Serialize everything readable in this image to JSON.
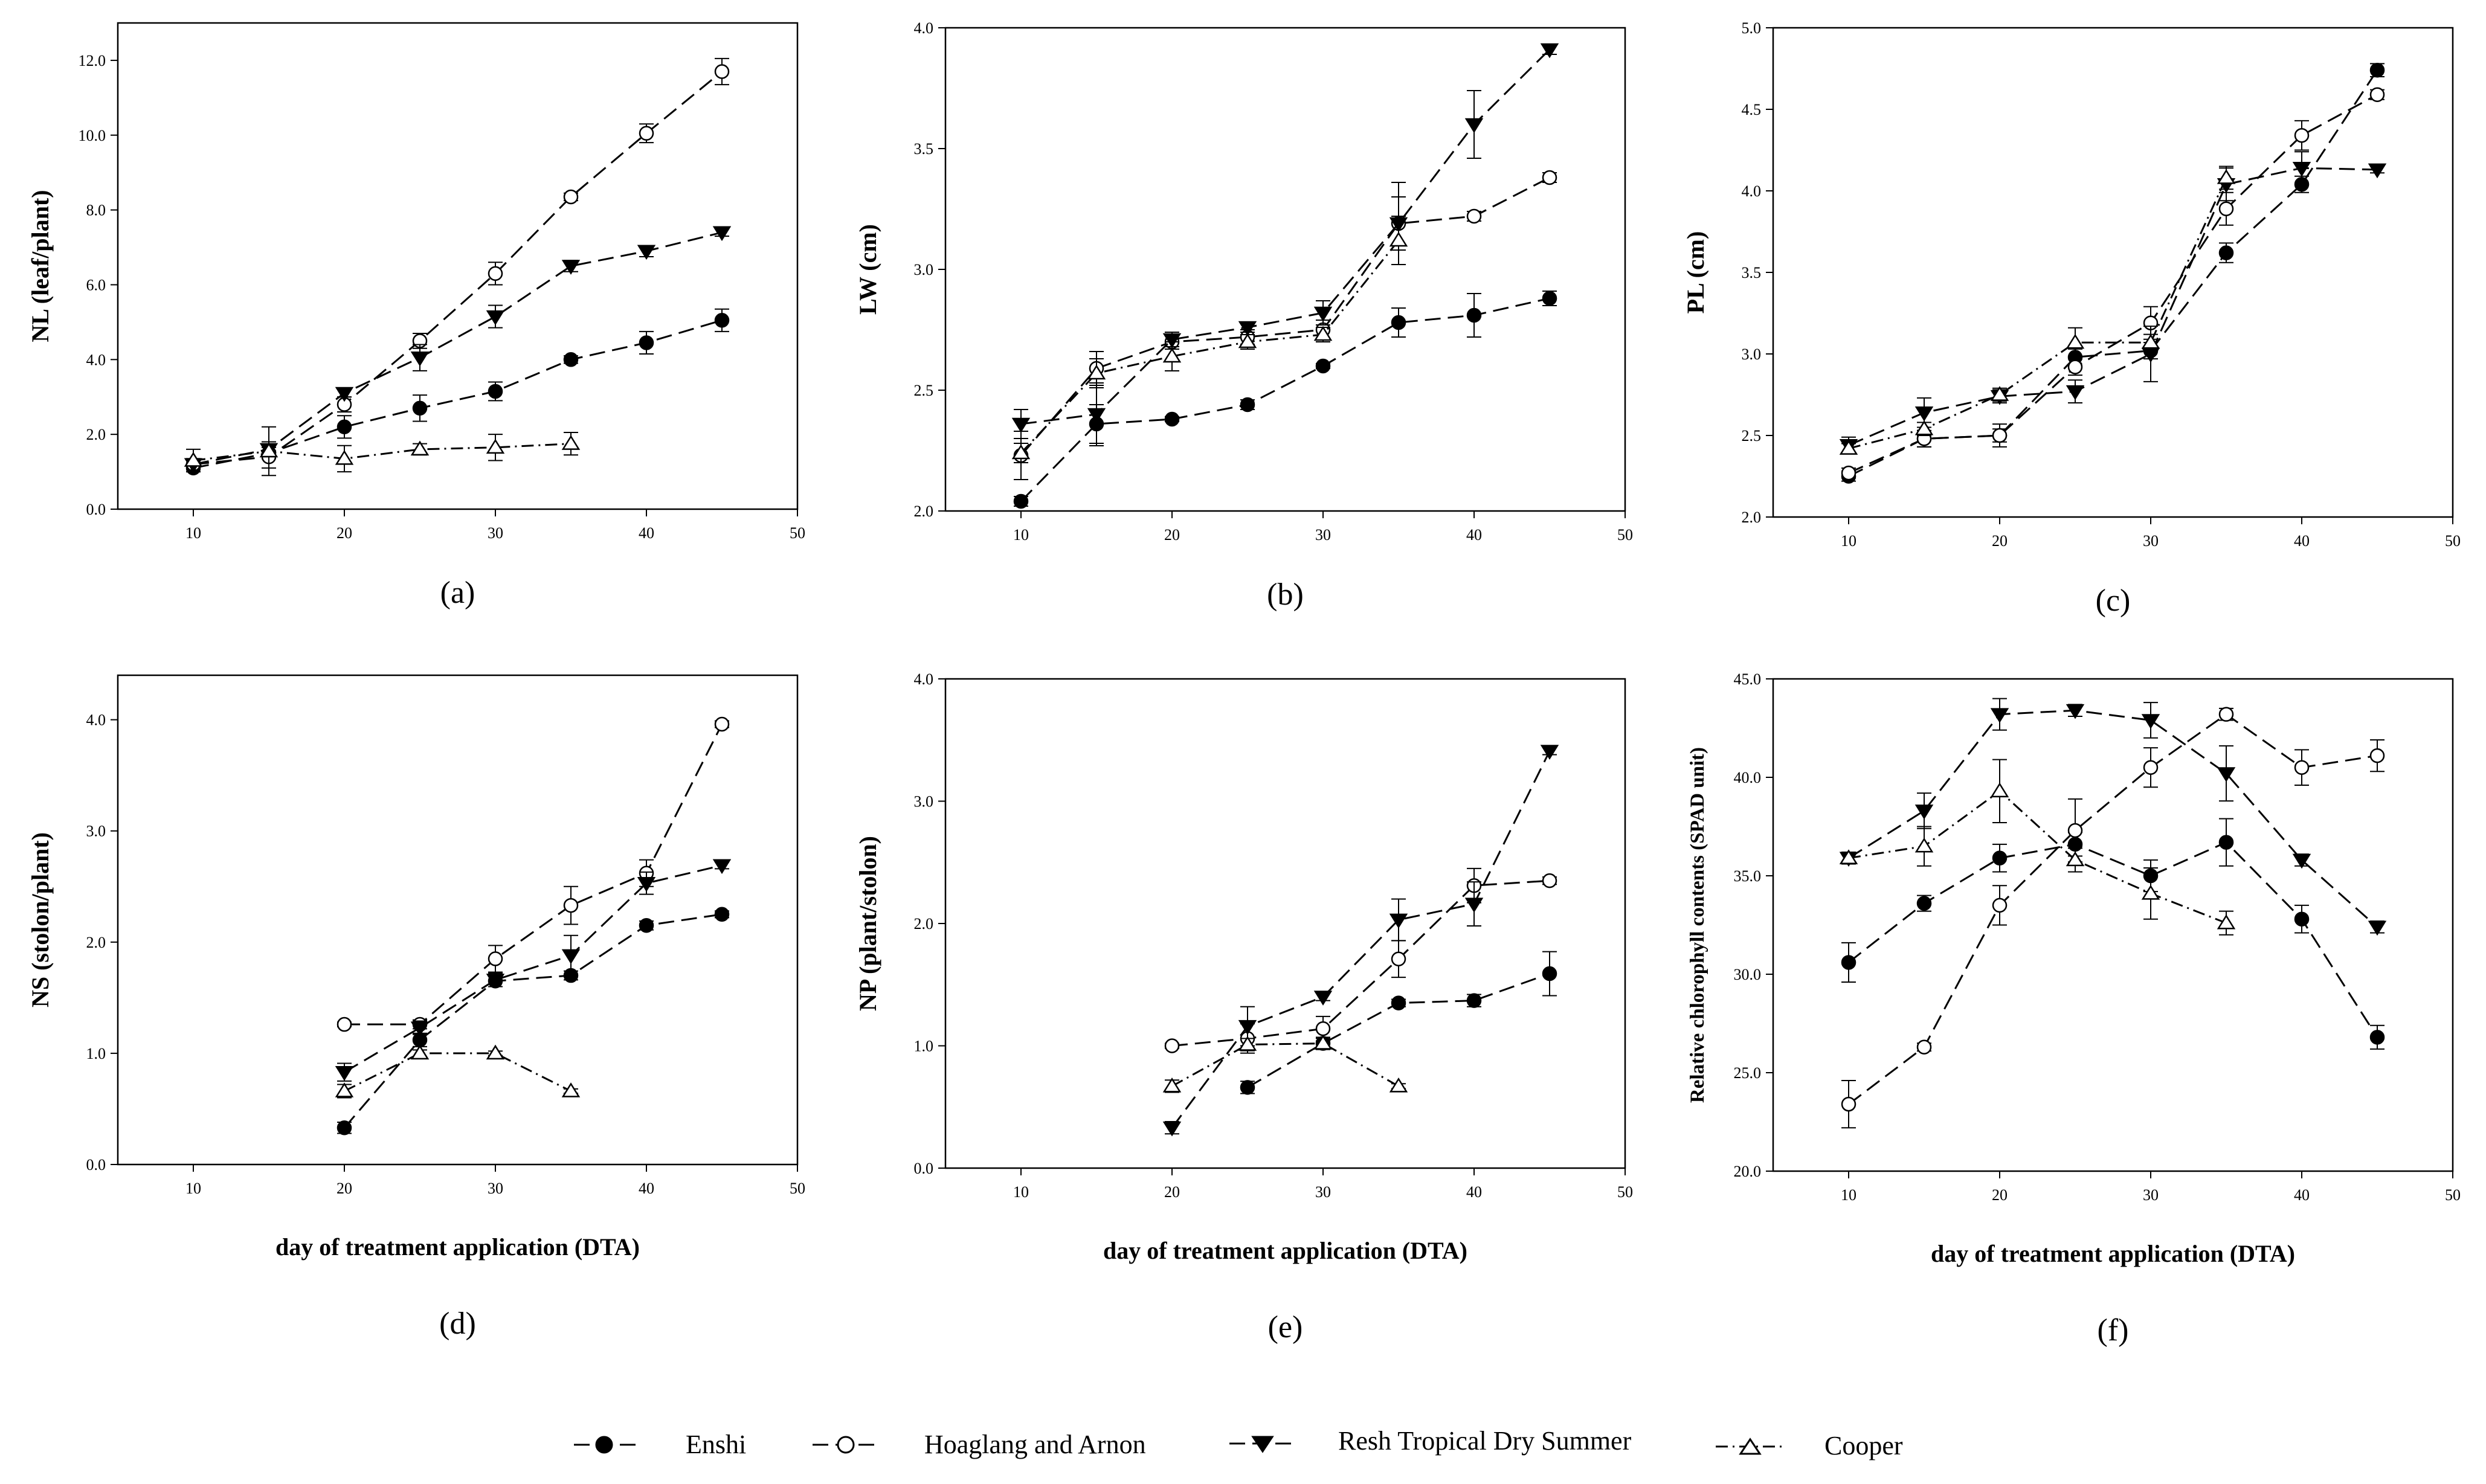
{
  "figure": {
    "xlabel": "day of treatment application (DTA)",
    "legend": [
      {
        "name": "Enshi",
        "marker": "filled-circle",
        "dash": "long-dash"
      },
      {
        "name": "Hoaglang and Arnon",
        "marker": "open-circle",
        "dash": "long-dash"
      },
      {
        "name": "Resh Tropical Dry Summer",
        "marker": "filled-triangle-down",
        "dash": "long-dash"
      },
      {
        "name": "Cooper",
        "marker": "open-triangle",
        "dash": "dash-dot"
      }
    ]
  },
  "chart_data": [
    {
      "id": "a",
      "panel_label": "(a)",
      "type": "line",
      "ylabel": "NL (leaf/plant)",
      "xlabel": "",
      "xlim": [
        5,
        50
      ],
      "ylim": [
        0,
        13
      ],
      "xticks": [
        10,
        20,
        30,
        40,
        50
      ],
      "yticks": [
        0,
        2,
        4,
        6,
        8,
        10,
        12
      ],
      "ytick_decimals": 1,
      "series": [
        {
          "name": "Enshi",
          "x": [
            10,
            15,
            20,
            25,
            30,
            35,
            40,
            45
          ],
          "y": [
            1.1,
            1.5,
            2.2,
            2.7,
            3.15,
            4.0,
            4.45,
            5.05
          ],
          "err": [
            0.1,
            0.15,
            0.3,
            0.35,
            0.25,
            0.1,
            0.3,
            0.3
          ]
        },
        {
          "name": "Hoaglang and Arnon",
          "x": [
            10,
            15,
            20,
            25,
            30,
            35,
            40,
            45
          ],
          "y": [
            1.2,
            1.4,
            2.8,
            4.5,
            6.3,
            8.35,
            10.05,
            11.7
          ],
          "err": [
            0.15,
            0.3,
            0.2,
            0.2,
            0.3,
            0.1,
            0.25,
            0.35
          ]
        },
        {
          "name": "Resh Tropical Dry Summer",
          "x": [
            10,
            15,
            20,
            25,
            30,
            35,
            40,
            45
          ],
          "y": [
            1.2,
            1.6,
            3.1,
            4.05,
            5.15,
            6.5,
            6.9,
            7.4
          ],
          "err": [
            0.15,
            0.2,
            0.1,
            0.35,
            0.3,
            0.15,
            0.15,
            0.1
          ]
        },
        {
          "name": "Cooper",
          "x": [
            10,
            15,
            20,
            25,
            30,
            35
          ],
          "y": [
            1.3,
            1.55,
            1.35,
            1.6,
            1.65,
            1.75
          ],
          "err": [
            0.3,
            0.65,
            0.35,
            0.15,
            0.35,
            0.3
          ]
        }
      ]
    },
    {
      "id": "b",
      "panel_label": "(b)",
      "type": "line",
      "ylabel": "LW (cm)",
      "xlabel": "",
      "xlim": [
        5,
        50
      ],
      "ylim": [
        2.0,
        4.0
      ],
      "xticks": [
        10,
        20,
        30,
        40,
        50
      ],
      "yticks": [
        2.0,
        2.5,
        3.0,
        3.5,
        4.0
      ],
      "ytick_decimals": 1,
      "series": [
        {
          "name": "Enshi",
          "x": [
            10,
            15,
            20,
            25,
            30,
            35,
            40,
            45
          ],
          "y": [
            2.04,
            2.36,
            2.38,
            2.44,
            2.6,
            2.78,
            2.81,
            2.88
          ],
          "err": [
            0.02,
            0.08,
            0.01,
            0.02,
            0.01,
            0.06,
            0.09,
            0.03
          ]
        },
        {
          "name": "Hoaglang and Arnon",
          "x": [
            10,
            15,
            20,
            25,
            30,
            35,
            40,
            45
          ],
          "y": [
            2.23,
            2.59,
            2.7,
            2.72,
            2.75,
            3.19,
            3.22,
            3.38
          ],
          "err": [
            0.1,
            0.07,
            0.03,
            0.03,
            0.04,
            0.17,
            0.02,
            0.02
          ]
        },
        {
          "name": "Resh Tropical Dry Summer",
          "x": [
            10,
            15,
            20,
            25,
            30,
            35,
            40,
            45
          ],
          "y": [
            2.36,
            2.4,
            2.71,
            2.76,
            2.82,
            3.19,
            3.6,
            3.91
          ],
          "err": [
            0.06,
            0.13,
            0.03,
            0.02,
            0.05,
            0.11,
            0.14,
            0.02
          ]
        },
        {
          "name": "Cooper",
          "x": [
            10,
            15,
            20,
            25,
            30,
            35
          ],
          "y": [
            2.24,
            2.57,
            2.64,
            2.7,
            2.73,
            3.12
          ],
          "err": [
            0.04,
            0.06,
            0.06,
            0.03,
            0.03,
            0.1
          ]
        }
      ]
    },
    {
      "id": "c",
      "panel_label": "(c)",
      "type": "line",
      "ylabel": "PL (cm)",
      "xlabel": "",
      "xlim": [
        5,
        50
      ],
      "ylim": [
        2.0,
        5.0
      ],
      "xticks": [
        10,
        20,
        30,
        40,
        50
      ],
      "yticks": [
        2.0,
        2.5,
        3.0,
        3.5,
        4.0,
        4.5,
        5.0
      ],
      "ytick_decimals": 1,
      "series": [
        {
          "name": "Enshi",
          "x": [
            10,
            15,
            20,
            25,
            30,
            35,
            40,
            45
          ],
          "y": [
            2.25,
            2.48,
            2.5,
            2.98,
            3.02,
            3.62,
            4.04,
            4.74
          ],
          "err": [
            0.03,
            0.05,
            0.07,
            0.05,
            0.05,
            0.06,
            0.05,
            0.04
          ]
        },
        {
          "name": "Hoaglang and Arnon",
          "x": [
            10,
            15,
            20,
            25,
            30,
            35,
            40,
            45
          ],
          "y": [
            2.27,
            2.48,
            2.5,
            2.92,
            3.19,
            3.89,
            4.34,
            4.59
          ],
          "err": [
            0.03,
            0.05,
            0.04,
            0.05,
            0.1,
            0.1,
            0.09,
            0.03
          ]
        },
        {
          "name": "Resh Tropical Dry Summer",
          "x": [
            10,
            15,
            20,
            25,
            30,
            35,
            40,
            45
          ],
          "y": [
            2.44,
            2.64,
            2.74,
            2.77,
            3.0,
            4.04,
            4.14,
            4.13
          ],
          "err": [
            0.05,
            0.09,
            0.04,
            0.07,
            0.17,
            0.1,
            0.1,
            0.02
          ]
        },
        {
          "name": "Cooper",
          "x": [
            10,
            15,
            20,
            25,
            30,
            35
          ],
          "y": [
            2.42,
            2.54,
            2.75,
            3.07,
            3.07,
            4.08
          ],
          "err": [
            0.03,
            0.04,
            0.04,
            0.09,
            0.05,
            0.07
          ]
        }
      ]
    },
    {
      "id": "d",
      "panel_label": "(d)",
      "type": "line",
      "ylabel": "NS (stolon/plant)",
      "xlabel": "day of treatment application (DTA)",
      "xlim": [
        5,
        50
      ],
      "ylim": [
        0,
        4.4
      ],
      "xticks": [
        10,
        20,
        30,
        40,
        50
      ],
      "yticks": [
        0,
        1,
        2,
        3,
        4
      ],
      "ytick_decimals": 1,
      "series": [
        {
          "name": "Enshi",
          "x": [
            20,
            25,
            30,
            35,
            40,
            45
          ],
          "y": [
            0.33,
            1.12,
            1.65,
            1.7,
            2.15,
            2.25
          ],
          "err": [
            0.05,
            0.06,
            0.05,
            0.04,
            0.04,
            0.03
          ]
        },
        {
          "name": "Hoaglang and Arnon",
          "x": [
            20,
            25,
            30,
            35,
            40,
            45
          ],
          "y": [
            1.26,
            1.26,
            1.85,
            2.33,
            2.62,
            3.96
          ],
          "err": [
            0.02,
            0.04,
            0.12,
            0.17,
            0.12,
            0.03
          ]
        },
        {
          "name": "Resh Tropical Dry Summer",
          "x": [
            20,
            25,
            30,
            35,
            40,
            45
          ],
          "y": [
            0.83,
            1.23,
            1.66,
            1.88,
            2.53,
            2.69
          ],
          "err": [
            0.08,
            0.06,
            0.06,
            0.18,
            0.1,
            0.03
          ]
        },
        {
          "name": "Cooper",
          "x": [
            20,
            25,
            30,
            35
          ],
          "y": [
            0.66,
            1.0,
            1.0,
            0.66
          ],
          "err": [
            0.06,
            0.03,
            0.02,
            0.02
          ]
        }
      ]
    },
    {
      "id": "e",
      "panel_label": "(e)",
      "type": "line",
      "ylabel": "NP (plant/stolon)",
      "xlabel": "day of treatment application (DTA)",
      "xlim": [
        5,
        50
      ],
      "ylim": [
        0,
        4.0
      ],
      "xticks": [
        10,
        20,
        30,
        40,
        50
      ],
      "yticks": [
        0,
        1,
        2,
        3,
        4
      ],
      "ytick_decimals": 1,
      "series": [
        {
          "name": "Enshi",
          "x": [
            25,
            30,
            35,
            40,
            45
          ],
          "y": [
            0.66,
            1.02,
            1.35,
            1.37,
            1.59
          ],
          "err": [
            0.05,
            0.05,
            0.03,
            0.05,
            0.18
          ]
        },
        {
          "name": "Hoaglang and Arnon",
          "x": [
            20,
            25,
            30,
            35,
            40,
            45
          ],
          "y": [
            1.0,
            1.06,
            1.14,
            1.71,
            2.31,
            2.35
          ],
          "err": [
            0.02,
            0.12,
            0.1,
            0.15,
            0.14,
            0.03
          ]
        },
        {
          "name": "Resh Tropical Dry Summer",
          "x": [
            20,
            25,
            30,
            35,
            40,
            45
          ],
          "y": [
            0.33,
            1.16,
            1.4,
            2.03,
            2.16,
            3.41
          ],
          "err": [
            0.05,
            0.16,
            0.03,
            0.17,
            0.18,
            0.03
          ]
        },
        {
          "name": "Cooper",
          "x": [
            20,
            25,
            30,
            35
          ],
          "y": [
            0.67,
            1.01,
            1.02,
            0.67
          ],
          "err": [
            0.05,
            0.05,
            0.04,
            0.02
          ]
        }
      ]
    },
    {
      "id": "f",
      "panel_label": "(f)",
      "type": "line",
      "ylabel": "Relative chlorophyll contents (SPAD unit)",
      "xlabel": "day of treatment application (DTA)",
      "xlim": [
        5,
        50
      ],
      "ylim": [
        20.0,
        45.0
      ],
      "xticks": [
        10,
        20,
        30,
        40,
        50
      ],
      "yticks": [
        20,
        25,
        30,
        35,
        40,
        45
      ],
      "ytick_decimals": 1,
      "series": [
        {
          "name": "Enshi",
          "x": [
            10,
            15,
            20,
            25,
            30,
            35,
            40,
            45
          ],
          "y": [
            30.6,
            33.6,
            35.9,
            36.6,
            35.0,
            36.7,
            32.8,
            26.8
          ],
          "err": [
            1.0,
            0.4,
            0.7,
            0.6,
            0.8,
            1.2,
            0.7,
            0.6
          ]
        },
        {
          "name": "Hoaglang and Arnon",
          "x": [
            10,
            15,
            20,
            25,
            30,
            35,
            40,
            45
          ],
          "y": [
            23.4,
            26.3,
            33.5,
            37.3,
            40.5,
            43.2,
            40.5,
            41.1
          ],
          "err": [
            1.2,
            0.2,
            1.0,
            1.6,
            1.0,
            0.3,
            0.9,
            0.8
          ]
        },
        {
          "name": "Resh Tropical Dry Summer",
          "x": [
            10,
            15,
            20,
            25,
            30,
            35,
            40,
            45
          ],
          "y": [
            35.9,
            38.3,
            43.2,
            43.4,
            42.9,
            40.2,
            35.8,
            32.4
          ],
          "err": [
            0.3,
            0.9,
            0.8,
            0.3,
            0.9,
            1.4,
            0.3,
            0.3
          ]
        },
        {
          "name": "Cooper",
          "x": [
            10,
            15,
            20,
            25,
            30,
            35
          ],
          "y": [
            35.9,
            36.5,
            39.3,
            35.8,
            34.1,
            32.6
          ],
          "err": [
            0.2,
            1.0,
            1.6,
            0.6,
            1.3,
            0.6
          ]
        }
      ]
    }
  ]
}
